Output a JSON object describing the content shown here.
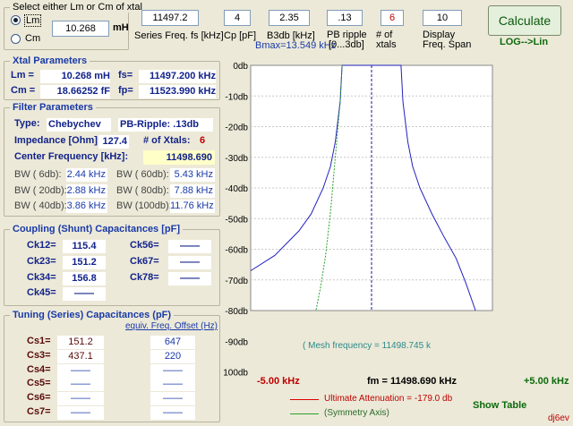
{
  "top": {
    "select_group_title": "Select either Lm or Cm of xtal",
    "radio_lm_label": "Lm",
    "radio_cm_label": "Cm",
    "inductance_value": "10.268",
    "inductance_unit": "mH",
    "series_freq_value": "11497.2",
    "series_freq_label": "Series Freq. fs [kHz]",
    "cp_value": "4",
    "cp_label": "Cp [pF]",
    "b3db_value": "2.35",
    "b3db_label": "B3db [kHz]",
    "bmax_label": "Bmax=13.549 kHz",
    "pbripple_value": ".13",
    "pbripple_label1": "PB ripple",
    "pbripple_label2": "[0...3db]",
    "nxtals_value": "6",
    "nxtals_label1": "# of",
    "nxtals_label2": "xtals",
    "span_value": "10",
    "span_label1": "Display",
    "span_label2": "Freq. Span",
    "calculate_label": "Calculate",
    "log_lin_label": "LOG-->Lin"
  },
  "xtal": {
    "title": "Xtal Parameters",
    "lm_label": "Lm =",
    "lm_value": "10.268 mH",
    "fs_label": "fs=",
    "fs_value": "11497.200 kHz",
    "cm_label": "Cm =",
    "cm_value": "18.66252  fF",
    "fp_label": "fp=",
    "fp_value": "11523.990 kHz"
  },
  "filter": {
    "title": "Filter Parameters",
    "type_label": "Type:",
    "type_value": "Chebychev",
    "pb_ripple": "PB-Ripple: .13db",
    "impedance_label": "Impedance [Ohm]:",
    "impedance_value": "127.4",
    "nxtals_label": "# of Xtals:",
    "nxtals_value": "6",
    "center_label": "Center Frequency [kHz]:",
    "center_value": "11498.690",
    "bw": [
      {
        "l1": "BW ( 6db):",
        "v1": "2.44 kHz",
        "l2": "BW ( 60db):",
        "v2": "5.43 kHz"
      },
      {
        "l1": "BW ( 20db):",
        "v1": "2.88 kHz",
        "l2": "BW ( 80db):",
        "v2": "7.88 kHz"
      },
      {
        "l1": "BW ( 40db):",
        "v1": "3.86 kHz",
        "l2": "BW (100db):",
        "v2": "11.76 kHz"
      }
    ]
  },
  "coupling": {
    "title": "Coupling (Shunt) Capacitances [pF]",
    "rows": [
      {
        "l1": "Ck12=",
        "v1": "115.4",
        "l2": "Ck56=",
        "v2": "——"
      },
      {
        "l1": "Ck23=",
        "v1": "151.2",
        "l2": "Ck67=",
        "v2": "——"
      },
      {
        "l1": "Ck34=",
        "v1": "156.8",
        "l2": "Ck78=",
        "v2": "——"
      },
      {
        "l1": "Ck45=",
        "v1": "——"
      }
    ]
  },
  "tuning": {
    "title": "Tuning (Series) Capacitances (pF)",
    "offset_label": "equiv. Freq. Offset (Hz)",
    "rows": [
      {
        "l": "Cs1=",
        "v": "151.2",
        "o": "647"
      },
      {
        "l": "Cs3=",
        "v": "437.1",
        "o": "220"
      },
      {
        "l": "Cs4=",
        "v": "——",
        "o": "——"
      },
      {
        "l": "Cs5=",
        "v": "——",
        "o": "——"
      },
      {
        "l": "Cs6=",
        "v": "——",
        "o": "——"
      },
      {
        "l": "Cs7=",
        "v": "——",
        "o": "——"
      }
    ]
  },
  "plot": {
    "mesh_label": "( Mesh frequency = 11498.745 k",
    "left_freq": "-5.00 kHz",
    "center_freq": "fm = 11498.690 kHz",
    "right_freq": "+5.00 kHz",
    "ultimate_label": "Ultimate Attenuation =  -179.0 db",
    "symmetry_label": "(Symmetry Axis)",
    "show_table": "Show Table",
    "signature": "dj6ev"
  },
  "chart_data": {
    "type": "line",
    "xlabel": "",
    "ylabel": "",
    "x_unit": "kHz offset from fm",
    "xlim": [
      -5,
      5
    ],
    "ylim": [
      -100,
      0
    ],
    "yticks": [
      "0db",
      "-10db",
      "-20db",
      "-30db",
      "-40db",
      "-50db",
      "-60db",
      "-70db",
      "-80db",
      "-90db",
      "-100db"
    ],
    "series": [
      {
        "color": "#2020c0",
        "x": [
          -5,
          -4,
          -3,
          -2.5,
          -2,
          -1.7,
          -1.5,
          -1.3,
          -1.22,
          -1.1,
          0,
          1.1,
          1.22,
          1.3,
          1.5,
          1.7,
          2,
          2.5,
          3,
          3.5,
          3.9,
          4.3
        ],
        "y": [
          -67,
          -62,
          -54,
          -48.5,
          -40,
          -33,
          -25,
          -12,
          0,
          0,
          0,
          0,
          0,
          -12,
          -25,
          -33,
          -40,
          -48.5,
          -56,
          -63,
          -71,
          -80
        ]
      },
      {
        "color": "#2ca02c",
        "x": [
          -1.22,
          -1.3,
          -1.5,
          -1.7,
          -1.9,
          -2.1,
          -2.3
        ],
        "y": [
          0,
          -12,
          -30,
          -48,
          -62,
          -72,
          -80
        ]
      }
    ],
    "symmetry_x": 0,
    "ultimate_attenuation_db": -179.0
  },
  "colors": {
    "curve": "#2020c0",
    "symmetry": "#2ca02c",
    "ultimate": "#e00000",
    "label_blue": "#1a3aa8",
    "label_red": "#c00000"
  }
}
